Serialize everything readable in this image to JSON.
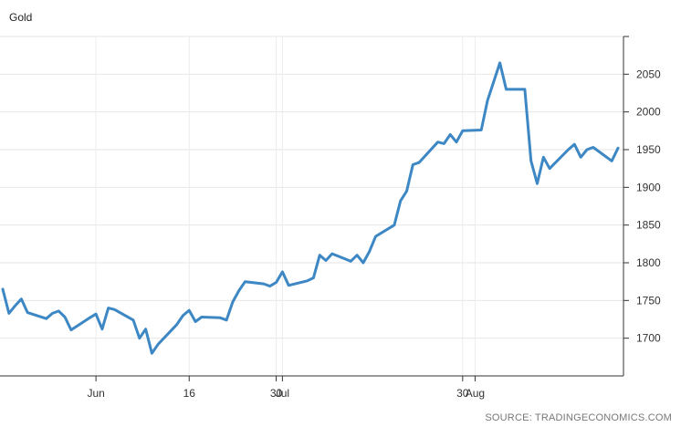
{
  "chart_data": {
    "type": "line",
    "title": "Gold",
    "source": "SOURCE: TRADINGECONOMICS.COM",
    "xlabel": "",
    "ylabel": "",
    "ylim": [
      1650,
      2100
    ],
    "grid": true,
    "line_color": "#3d88c4",
    "y_ticks": [
      1700,
      1750,
      1800,
      1850,
      1900,
      1950,
      2000,
      2050
    ],
    "x_ticks": [
      {
        "label": "Jun",
        "day": 32
      },
      {
        "label": "16",
        "day": 47
      },
      {
        "label": "30",
        "day": 61
      },
      {
        "label": "Jul",
        "day": 62
      },
      {
        "label": "30",
        "day": 91
      },
      {
        "label": "Aug",
        "day": 93
      }
    ],
    "series": [
      {
        "x": [
          "2020-05-18",
          "2020-05-19",
          "2020-05-20",
          "2020-05-21",
          "2020-05-22",
          "2020-05-25",
          "2020-05-26",
          "2020-05-27",
          "2020-05-28",
          "2020-05-29",
          "2020-06-01",
          "2020-06-02",
          "2020-06-03",
          "2020-06-04",
          "2020-06-05",
          "2020-06-08",
          "2020-06-09",
          "2020-06-10",
          "2020-06-11",
          "2020-06-12",
          "2020-06-15",
          "2020-06-16",
          "2020-06-17",
          "2020-06-18",
          "2020-06-19",
          "2020-06-22",
          "2020-06-23",
          "2020-06-24",
          "2020-06-25",
          "2020-06-26",
          "2020-06-29",
          "2020-06-30",
          "2020-07-01",
          "2020-07-02",
          "2020-07-03",
          "2020-07-06",
          "2020-07-07",
          "2020-07-08",
          "2020-07-09",
          "2020-07-10",
          "2020-07-13",
          "2020-07-14",
          "2020-07-15",
          "2020-07-16",
          "2020-07-17",
          "2020-07-20",
          "2020-07-21",
          "2020-07-22",
          "2020-07-23",
          "2020-07-24",
          "2020-07-27",
          "2020-07-28",
          "2020-07-29",
          "2020-07-30",
          "2020-07-31",
          "2020-08-03",
          "2020-08-04",
          "2020-08-05",
          "2020-08-06",
          "2020-08-07",
          "2020-08-10",
          "2020-08-11",
          "2020-08-12",
          "2020-08-13",
          "2020-08-14",
          "2020-08-17",
          "2020-08-18",
          "2020-08-19",
          "2020-08-20",
          "2020-08-21",
          "2020-08-24",
          "2020-08-25"
        ],
        "values": [
          1765,
          1733,
          1743,
          1752,
          1734,
          1726,
          1733,
          1736,
          1728,
          1711,
          1727,
          1732,
          1712,
          1740,
          1738,
          1724,
          1700,
          1712,
          1680,
          1692,
          1718,
          1730,
          1737,
          1722,
          1728,
          1727,
          1724,
          1748,
          1763,
          1775,
          1772,
          1769,
          1774,
          1788,
          1770,
          1776,
          1780,
          1810,
          1803,
          1812,
          1802,
          1810,
          1800,
          1815,
          1835,
          1850,
          1882,
          1895,
          1930,
          1933,
          1960,
          1958,
          1970,
          1960,
          1975,
          1976,
          2015,
          2040,
          2065,
          2030,
          2030,
          1935,
          1905,
          1940,
          1925,
          1950,
          1957,
          1940,
          1950,
          1953,
          1935,
          1952
        ]
      }
    ]
  }
}
